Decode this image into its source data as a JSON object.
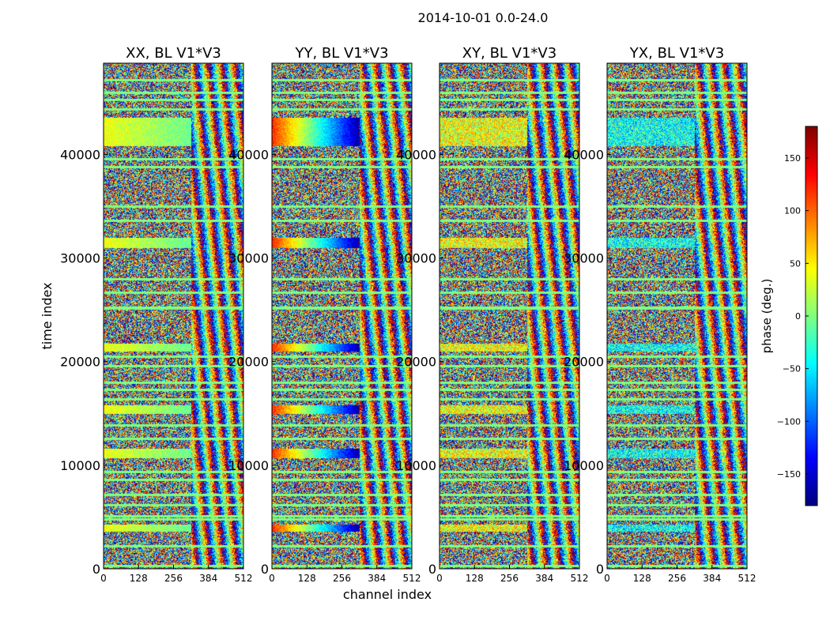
{
  "chart_data": {
    "type": "heatmap",
    "suptitle": "2014-10-01 0.0-24.0",
    "xlabel": "channel index",
    "ylabel": "time index",
    "xlim": [
      0,
      512
    ],
    "ylim": [
      0,
      48800
    ],
    "xticks": [
      0,
      128,
      256,
      384,
      512
    ],
    "yticks": [
      0,
      10000,
      20000,
      30000,
      40000
    ],
    "panels": [
      {
        "title": "XX, BL V1*V3",
        "pol": "XX"
      },
      {
        "title": "YY, BL V1*V3",
        "pol": "YY"
      },
      {
        "title": "XY, BL V1*V3",
        "pol": "XY"
      },
      {
        "title": "YX, BL V1*V3",
        "pol": "YX"
      }
    ],
    "colorbar": {
      "label": "phase (deg.)",
      "range": [
        -180,
        180
      ],
      "ticks": [
        -150,
        -100,
        -50,
        0,
        50,
        100,
        150
      ],
      "tick_labels": [
        "−150",
        "−100",
        "−50",
        "0",
        "50",
        "100",
        "150"
      ],
      "colormap": "jet"
    },
    "coherent_bands": {
      "time_ranges": [
        [
          40800,
          43600
        ],
        [
          21000,
          21800
        ],
        [
          15000,
          15800
        ],
        [
          10700,
          11600
        ],
        [
          3600,
          4300
        ],
        [
          31000,
          32000
        ]
      ],
      "channel_range": [
        0,
        320
      ]
    },
    "flagged_time_rows": [
      47200,
      46000,
      45300,
      44400,
      39600,
      38800,
      35000,
      33600,
      28000,
      26700,
      25200,
      20500,
      19600,
      18000,
      17300,
      16400,
      13900,
      12600,
      9400,
      8600,
      7200,
      6200,
      5100,
      4800,
      2200,
      300
    ]
  },
  "colors": {
    "flag_value": 0,
    "axis": "#000000",
    "background": "#ffffff"
  }
}
